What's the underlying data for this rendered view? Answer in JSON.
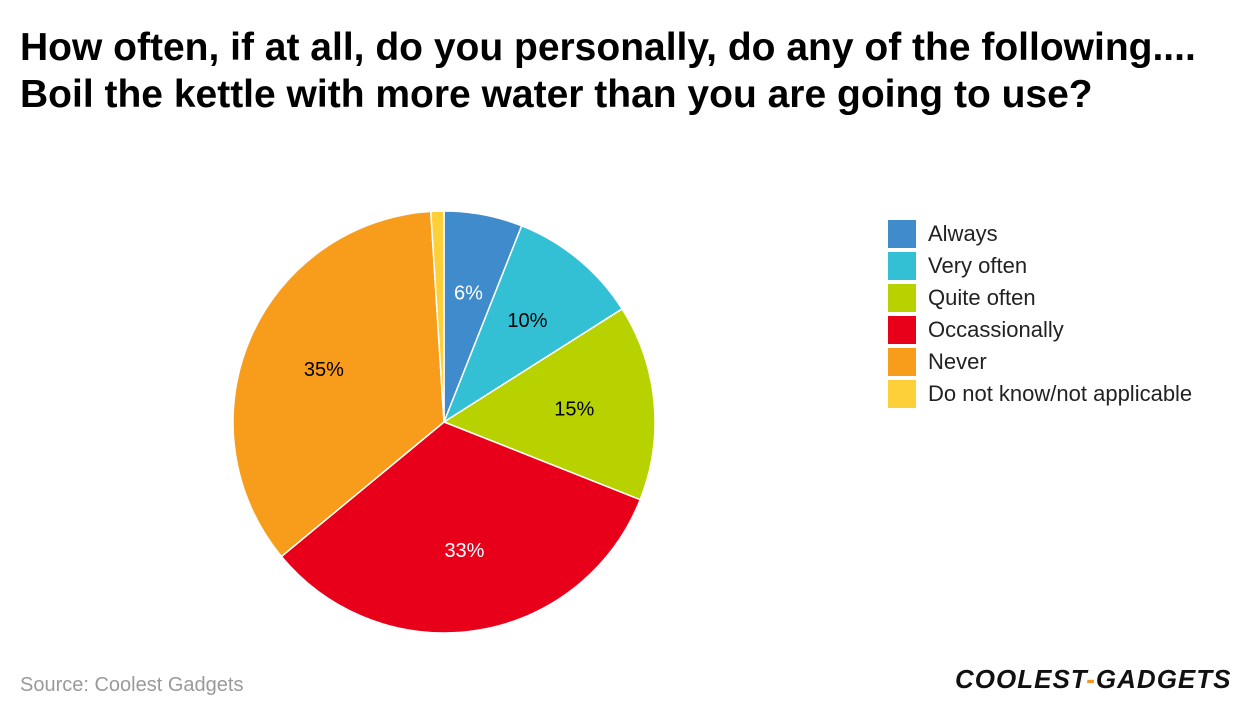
{
  "title": "How often, if at all, do you personally, do any of the following.... Boil the kettle with more water than you are going to use?",
  "source": "Source: Coolest Gadgets",
  "logo": {
    "left": "COOLEST",
    "dash": "-",
    "right": "GADGETS"
  },
  "chart_data": {
    "type": "pie",
    "categories": [
      "Always",
      "Very often",
      "Quite often",
      "Occassionally",
      "Never",
      "Do not know/not applicable"
    ],
    "values": [
      6,
      10,
      15,
      33,
      35,
      1
    ],
    "labels": [
      "6%",
      "10%",
      "15%",
      "33%",
      "35%",
      ""
    ],
    "colors": [
      "#3f8bcc",
      "#33bfd4",
      "#b8d200",
      "#e8001a",
      "#f89c1c",
      "#fdd03a"
    ],
    "label_colors": [
      "#ffffff",
      "#000000",
      "#000000",
      "#ffffff",
      "#000000",
      "#000000"
    ],
    "legend_position": "right"
  }
}
